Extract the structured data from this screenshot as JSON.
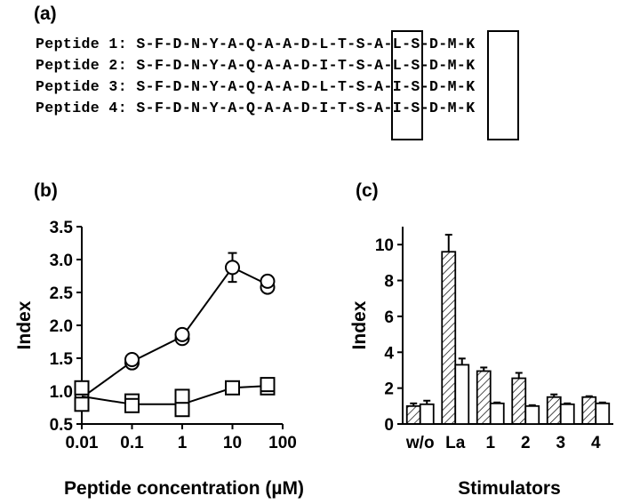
{
  "panel_a": {
    "label": "(a)",
    "peptides": [
      {
        "name": "Peptide 1:",
        "sequence": "S-F-D-N-Y-A-Q-A-A-D-L-T-S-A-L-S-D-M-K"
      },
      {
        "name": "Peptide 2:",
        "sequence": "S-F-D-N-Y-A-Q-A-A-D-I-T-S-A-L-S-D-M-K"
      },
      {
        "name": "Peptide 3:",
        "sequence": "S-F-D-N-Y-A-Q-A-A-D-L-T-S-A-I-S-D-M-K"
      },
      {
        "name": "Peptide 4:",
        "sequence": "S-F-D-N-Y-A-Q-A-A-D-I-T-S-A-I-S-D-M-K"
      }
    ]
  },
  "chart_data": [
    {
      "type": "scatter",
      "panel": "(b)",
      "xlabel": "Peptide concentration (µM)",
      "ylabel": "Index",
      "xscale": "log",
      "xlim": [
        0.01,
        100
      ],
      "ylim": [
        0.5,
        3.5
      ],
      "x_ticks": [
        "0.01",
        "0.1",
        "1",
        "10",
        "100"
      ],
      "y_ticks": [
        "0.5",
        "1.0",
        "1.5",
        "2.0",
        "2.5",
        "3.0",
        "3.5"
      ],
      "series": [
        {
          "marker": "circle",
          "x": [
            0.01,
            0.1,
            1,
            10,
            50
          ],
          "y": [
            0.9,
            1.45,
            1.83,
            2.88,
            2.62
          ],
          "error": [
            0,
            0,
            0,
            0.22,
            0
          ],
          "replicates": [
            {
              "x": 0.01,
              "y": 0.85
            },
            {
              "x": 0.01,
              "y": 0.95
            },
            {
              "x": 0.1,
              "y": 1.43
            },
            {
              "x": 0.1,
              "y": 1.48
            },
            {
              "x": 1,
              "y": 1.8
            },
            {
              "x": 1,
              "y": 1.86
            },
            {
              "x": 10,
              "y": 2.88
            },
            {
              "x": 50,
              "y": 2.58
            },
            {
              "x": 50,
              "y": 2.67
            }
          ]
        },
        {
          "marker": "square",
          "x": [
            0.01,
            0.1,
            1,
            10,
            50
          ],
          "y": [
            0.92,
            0.8,
            0.8,
            1.05,
            1.08
          ],
          "error": [
            0,
            0,
            0,
            0.08,
            0.07
          ],
          "replicates": [
            {
              "x": 0.01,
              "y": 1.05
            },
            {
              "x": 0.01,
              "y": 0.8
            },
            {
              "x": 0.1,
              "y": 0.85
            },
            {
              "x": 0.1,
              "y": 0.78
            },
            {
              "x": 1,
              "y": 0.92
            },
            {
              "x": 1,
              "y": 0.72
            },
            {
              "x": 10,
              "y": 1.05
            },
            {
              "x": 50,
              "y": 1.05
            },
            {
              "x": 50,
              "y": 1.1
            }
          ]
        }
      ]
    },
    {
      "type": "bar",
      "panel": "(c)",
      "xlabel": "Stimulators",
      "ylabel": "Index",
      "ylim": [
        0,
        11
      ],
      "y_ticks": [
        "0",
        "2",
        "4",
        "6",
        "8",
        "10"
      ],
      "categories": [
        "w/o",
        "La",
        "1",
        "2",
        "3",
        "4"
      ],
      "series": [
        {
          "style": "hatched",
          "values": [
            1.0,
            9.6,
            2.95,
            2.55,
            1.5,
            1.5
          ],
          "error": [
            0.15,
            0.95,
            0.2,
            0.3,
            0.15,
            0.05
          ]
        },
        {
          "style": "open",
          "values": [
            1.1,
            3.3,
            1.15,
            1.0,
            1.1,
            1.15
          ],
          "error": [
            0.2,
            0.35,
            0.05,
            0.05,
            0.05,
            0.05
          ]
        }
      ]
    }
  ]
}
